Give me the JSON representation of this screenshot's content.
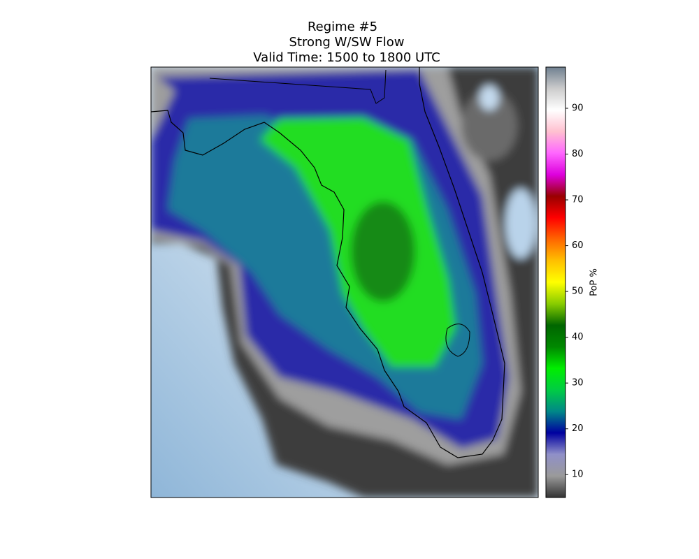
{
  "chart_data": {
    "type": "map",
    "title": [
      "Regime #5",
      "Strong W/SW Flow",
      "Valid Time: 1500 to 1800 UTC"
    ],
    "colorbar": {
      "label": "PoP %",
      "lim": [
        5,
        99
      ],
      "ticks": [
        10,
        20,
        30,
        40,
        50,
        60,
        70,
        80,
        90
      ],
      "colors": [
        "#333333",
        "#9a9a9a",
        "#9090c8",
        "#0000a0",
        "#008888",
        "#00cc44",
        "#00ee00",
        "#008800",
        "#006600",
        "#88cc00",
        "#ffff00",
        "#ffc000",
        "#ff6600",
        "#ff0000",
        "#990000",
        "#dd00dd",
        "#ff66ff",
        "#ffc0d0",
        "#ffffff",
        "#cccccc",
        "#708090"
      ]
    }
  }
}
